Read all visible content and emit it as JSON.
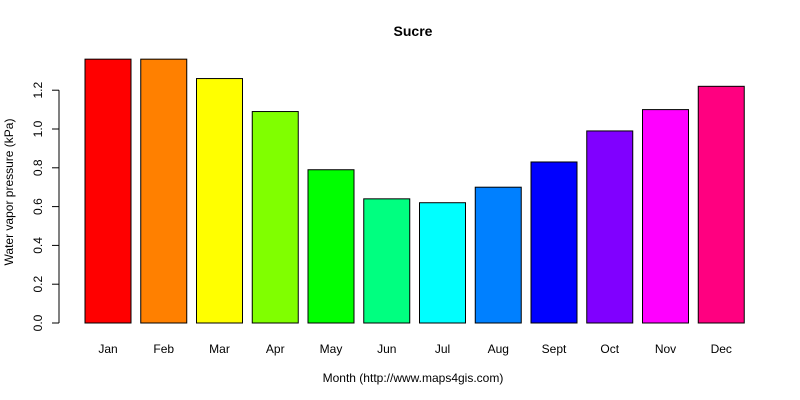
{
  "chart_data": {
    "type": "bar",
    "title": "Sucre",
    "xlabel": "Month (http://www.maps4gis.com)",
    "ylabel": "Water vapor pressure (kPa)",
    "categories": [
      "Jan",
      "Feb",
      "Mar",
      "Apr",
      "May",
      "Jun",
      "Jul",
      "Aug",
      "Sept",
      "Oct",
      "Nov",
      "Dec"
    ],
    "values": [
      1.36,
      1.36,
      1.26,
      1.09,
      0.79,
      0.64,
      0.62,
      0.7,
      0.83,
      0.99,
      1.1,
      1.22
    ],
    "colors": [
      "#FF0000",
      "#FF8000",
      "#FFFF00",
      "#80FF00",
      "#00FF00",
      "#00FF80",
      "#00FFFF",
      "#0080FF",
      "#0000FF",
      "#8000FF",
      "#FF00FF",
      "#FF0080"
    ],
    "yticks": [
      "0.0",
      "0.2",
      "0.4",
      "0.6",
      "0.8",
      "1.0",
      "1.2"
    ],
    "ylim": [
      0,
      1.36
    ],
    "grid": false,
    "legend": "none"
  }
}
